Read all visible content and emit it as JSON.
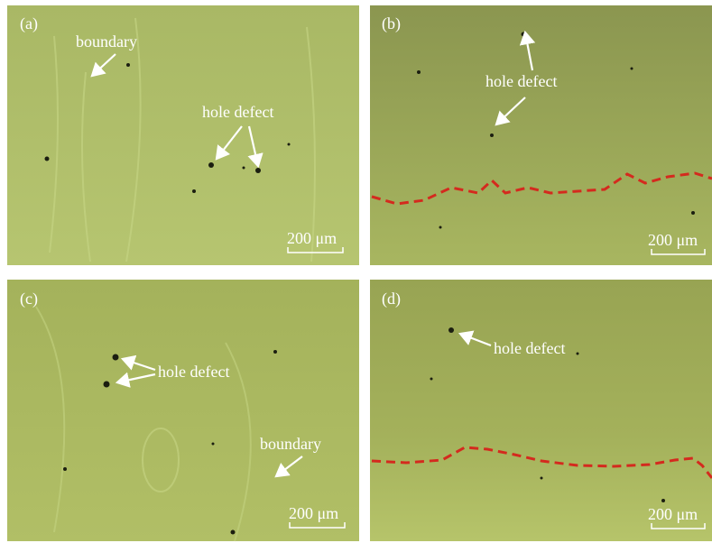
{
  "panels": [
    {
      "label": "(a)",
      "annotations": [
        "boundary",
        "hole defect"
      ],
      "scale_bar": "200 μm"
    },
    {
      "label": "(b)",
      "annotations": [
        "hole defect"
      ],
      "scale_bar": "200 μm"
    },
    {
      "label": "(c)",
      "annotations": [
        "hole defect",
        "boundary"
      ],
      "scale_bar": "200 μm"
    },
    {
      "label": "(d)",
      "annotations": [
        "hole defect"
      ],
      "scale_bar": "200 μm"
    }
  ]
}
